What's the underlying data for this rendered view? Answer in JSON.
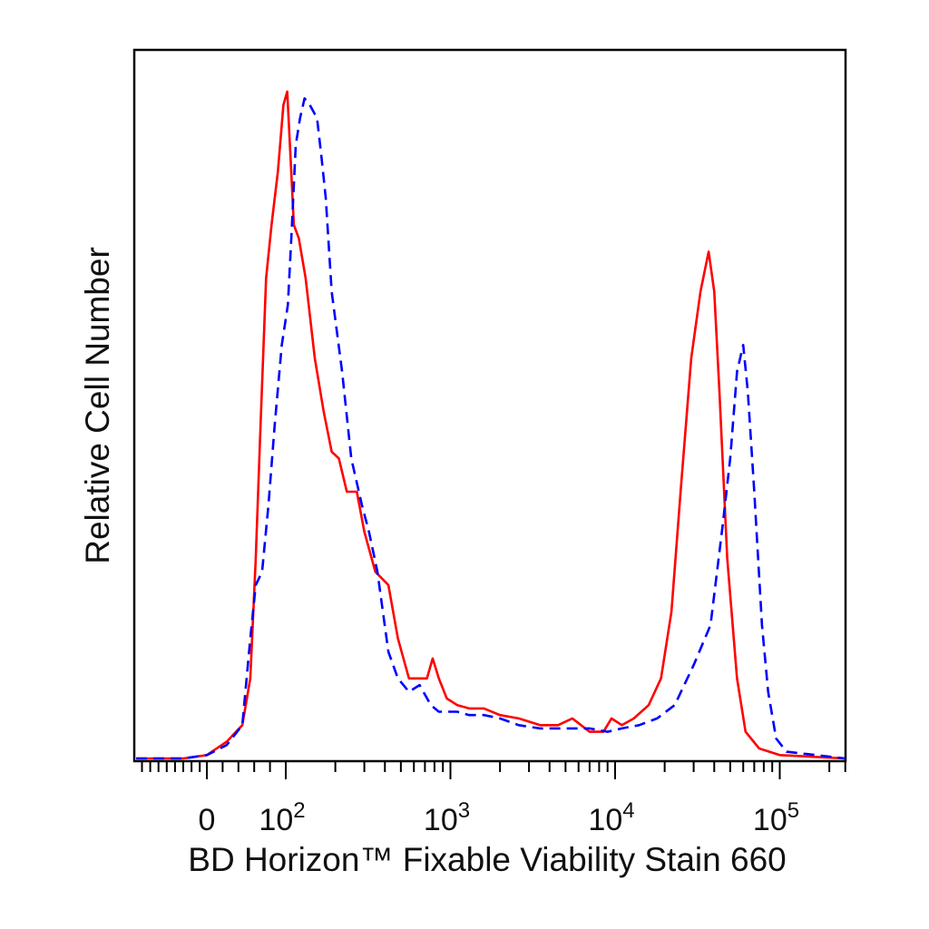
{
  "chart_data": {
    "type": "line",
    "title": "",
    "xlabel": "BD Horizon™ Fixable Viability Stain 660",
    "ylabel": "Relative Cell Number",
    "x_scale": "biexponential",
    "xlim": [
      -60,
      250000
    ],
    "ylim": [
      0,
      100
    ],
    "grid": false,
    "legend": "none",
    "x_ticks": [
      {
        "value": 0,
        "base": "0",
        "exp": ""
      },
      {
        "value": 100,
        "base": "10",
        "exp": "2"
      },
      {
        "value": 1000,
        "base": "10",
        "exp": "3"
      },
      {
        "value": 10000,
        "base": "10",
        "exp": "4"
      },
      {
        "value": 100000,
        "base": "10",
        "exp": "5"
      }
    ],
    "series": [
      {
        "color": "#ff0000",
        "style": "solid",
        "points": [
          [
            -60,
            0
          ],
          [
            -20,
            0
          ],
          [
            0,
            0.5
          ],
          [
            25,
            2.5
          ],
          [
            45,
            5
          ],
          [
            55,
            12
          ],
          [
            62,
            30
          ],
          [
            68,
            50
          ],
          [
            75,
            72
          ],
          [
            82,
            80
          ],
          [
            90,
            88
          ],
          [
            97,
            98
          ],
          [
            102,
            100
          ],
          [
            107,
            90
          ],
          [
            112,
            80
          ],
          [
            120,
            78
          ],
          [
            132,
            72
          ],
          [
            150,
            60
          ],
          [
            170,
            52
          ],
          [
            190,
            46
          ],
          [
            210,
            45
          ],
          [
            235,
            40
          ],
          [
            270,
            40
          ],
          [
            300,
            34
          ],
          [
            350,
            28
          ],
          [
            420,
            26
          ],
          [
            480,
            18
          ],
          [
            560,
            12
          ],
          [
            640,
            12
          ],
          [
            720,
            12
          ],
          [
            780,
            15
          ],
          [
            850,
            12
          ],
          [
            950,
            9
          ],
          [
            1100,
            8
          ],
          [
            1300,
            7.5
          ],
          [
            1600,
            7.5
          ],
          [
            2000,
            6.5
          ],
          [
            2600,
            6
          ],
          [
            3500,
            5
          ],
          [
            4500,
            5
          ],
          [
            5500,
            6
          ],
          [
            7000,
            4
          ],
          [
            8500,
            4
          ],
          [
            9500,
            6
          ],
          [
            11000,
            5
          ],
          [
            13000,
            6
          ],
          [
            16000,
            8
          ],
          [
            19000,
            12
          ],
          [
            22000,
            22
          ],
          [
            25000,
            40
          ],
          [
            29000,
            60
          ],
          [
            33000,
            70
          ],
          [
            37000,
            76
          ],
          [
            40000,
            70
          ],
          [
            43000,
            55
          ],
          [
            48000,
            30
          ],
          [
            55000,
            12
          ],
          [
            62000,
            4
          ],
          [
            75000,
            1.5
          ],
          [
            100000,
            0.5
          ],
          [
            250000,
            0
          ]
        ]
      },
      {
        "color": "#0000ff",
        "style": "dashed",
        "points": [
          [
            -60,
            0
          ],
          [
            -20,
            0
          ],
          [
            0,
            0.5
          ],
          [
            25,
            2
          ],
          [
            45,
            5
          ],
          [
            55,
            18
          ],
          [
            62,
            26
          ],
          [
            70,
            28
          ],
          [
            78,
            38
          ],
          [
            86,
            50
          ],
          [
            95,
            62
          ],
          [
            103,
            68
          ],
          [
            108,
            78
          ],
          [
            115,
            92
          ],
          [
            122,
            96
          ],
          [
            130,
            99
          ],
          [
            140,
            98
          ],
          [
            155,
            96
          ],
          [
            165,
            90
          ],
          [
            175,
            84
          ],
          [
            190,
            70
          ],
          [
            220,
            58
          ],
          [
            250,
            45
          ],
          [
            290,
            38
          ],
          [
            320,
            34
          ],
          [
            360,
            28
          ],
          [
            420,
            16
          ],
          [
            480,
            12
          ],
          [
            560,
            10
          ],
          [
            650,
            11
          ],
          [
            760,
            8
          ],
          [
            850,
            7
          ],
          [
            950,
            7
          ],
          [
            1100,
            7
          ],
          [
            1300,
            6.5
          ],
          [
            1600,
            6.5
          ],
          [
            2000,
            6
          ],
          [
            2600,
            5
          ],
          [
            3500,
            4.5
          ],
          [
            4500,
            4.5
          ],
          [
            5500,
            4.5
          ],
          [
            7000,
            4.5
          ],
          [
            9000,
            4
          ],
          [
            11000,
            4.5
          ],
          [
            14000,
            5
          ],
          [
            18000,
            6
          ],
          [
            23000,
            8
          ],
          [
            30000,
            14
          ],
          [
            38000,
            20
          ],
          [
            45000,
            35
          ],
          [
            50000,
            45
          ],
          [
            55000,
            58
          ],
          [
            60000,
            62
          ],
          [
            64000,
            55
          ],
          [
            70000,
            40
          ],
          [
            78000,
            20
          ],
          [
            85000,
            10
          ],
          [
            95000,
            3
          ],
          [
            110000,
            1
          ],
          [
            250000,
            0
          ]
        ]
      }
    ]
  }
}
